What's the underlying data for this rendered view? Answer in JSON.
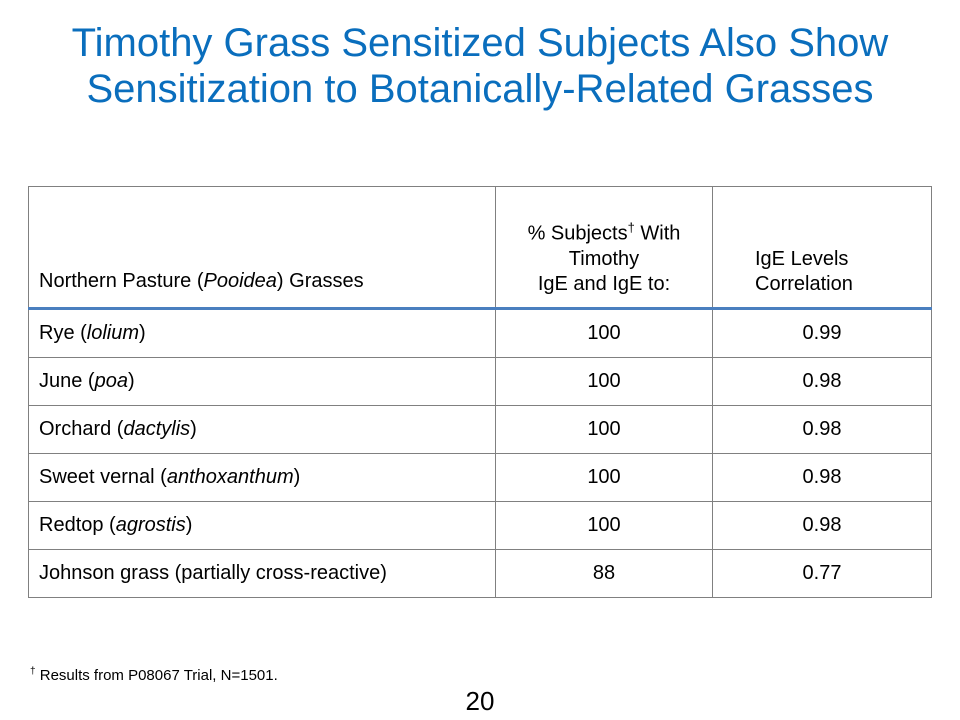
{
  "slide": {
    "title_line1": "Timothy Grass Sensitized Subjects Also Show",
    "title_line2": "Sensitization to Botanically-Related Grasses",
    "page_number": "20",
    "accent_color": "#0a6ebd"
  },
  "table": {
    "header": {
      "col1": {
        "prefix": "Northern Pasture (",
        "italic": "Pooidea",
        "suffix": ") Grasses"
      },
      "col2": {
        "line1_pre": "% Subjects",
        "dagger": "†",
        "line1_post": " With",
        "line2": "Timothy",
        "line3": "IgE and IgE to:"
      },
      "col3": {
        "line1": "IgE Levels",
        "line2": "Correlation"
      }
    },
    "rows": [
      {
        "name": "Rye (",
        "italic": "lolium",
        "suffix": ")",
        "percent": "100",
        "correlation": "0.99"
      },
      {
        "name": "June (",
        "italic": "poa",
        "suffix": ")",
        "percent": "100",
        "correlation": "0.98"
      },
      {
        "name": "Orchard (",
        "italic": "dactylis",
        "suffix": ")",
        "percent": "100",
        "correlation": "0.98"
      },
      {
        "name": "Sweet vernal (",
        "italic": "anthoxanthum",
        "suffix": ")",
        "percent": "100",
        "correlation": "0.98"
      },
      {
        "name": "Redtop (",
        "italic": "agrostis",
        "suffix": ")",
        "percent": "100",
        "correlation": "0.98"
      },
      {
        "name": "Johnson grass (partially cross-reactive)",
        "italic": "",
        "suffix": "",
        "percent": "88",
        "correlation": "0.77"
      }
    ]
  },
  "footnote": {
    "dagger": "†",
    "text": " Results from P08067 Trial, N=1501."
  }
}
